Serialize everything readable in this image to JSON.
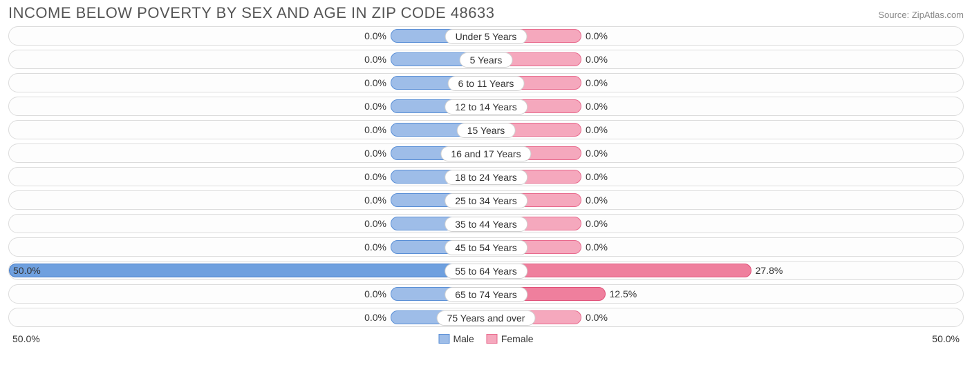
{
  "title": "INCOME BELOW POVERTY BY SEX AND AGE IN ZIP CODE 48633",
  "source": "Source: ZipAtlas.com",
  "colors": {
    "male_fill": "#9ebde8",
    "male_border": "#5a8fd6",
    "female_fill": "#f5a8bd",
    "female_border": "#e86a8d",
    "male_strong_fill": "#6fa0df",
    "male_strong_border": "#3f78c6",
    "female_strong_fill": "#ef7f9d",
    "female_strong_border": "#e05078",
    "row_border": "#dcdcdc",
    "text": "#333333",
    "title_text": "#555555",
    "bg": "#ffffff"
  },
  "axis": {
    "max_pct": 50.0,
    "min_bar_pct": 10.0,
    "left_label": "50.0%",
    "right_label": "50.0%"
  },
  "legend": {
    "male": "Male",
    "female": "Female"
  },
  "rows": [
    {
      "label": "Under 5 Years",
      "male": 0.0,
      "female": 0.0
    },
    {
      "label": "5 Years",
      "male": 0.0,
      "female": 0.0
    },
    {
      "label": "6 to 11 Years",
      "male": 0.0,
      "female": 0.0
    },
    {
      "label": "12 to 14 Years",
      "male": 0.0,
      "female": 0.0
    },
    {
      "label": "15 Years",
      "male": 0.0,
      "female": 0.0
    },
    {
      "label": "16 and 17 Years",
      "male": 0.0,
      "female": 0.0
    },
    {
      "label": "18 to 24 Years",
      "male": 0.0,
      "female": 0.0
    },
    {
      "label": "25 to 34 Years",
      "male": 0.0,
      "female": 0.0
    },
    {
      "label": "35 to 44 Years",
      "male": 0.0,
      "female": 0.0
    },
    {
      "label": "45 to 54 Years",
      "male": 0.0,
      "female": 0.0
    },
    {
      "label": "55 to 64 Years",
      "male": 50.0,
      "female": 27.8
    },
    {
      "label": "65 to 74 Years",
      "male": 0.0,
      "female": 12.5
    },
    {
      "label": "75 Years and over",
      "male": 0.0,
      "female": 0.0
    }
  ]
}
